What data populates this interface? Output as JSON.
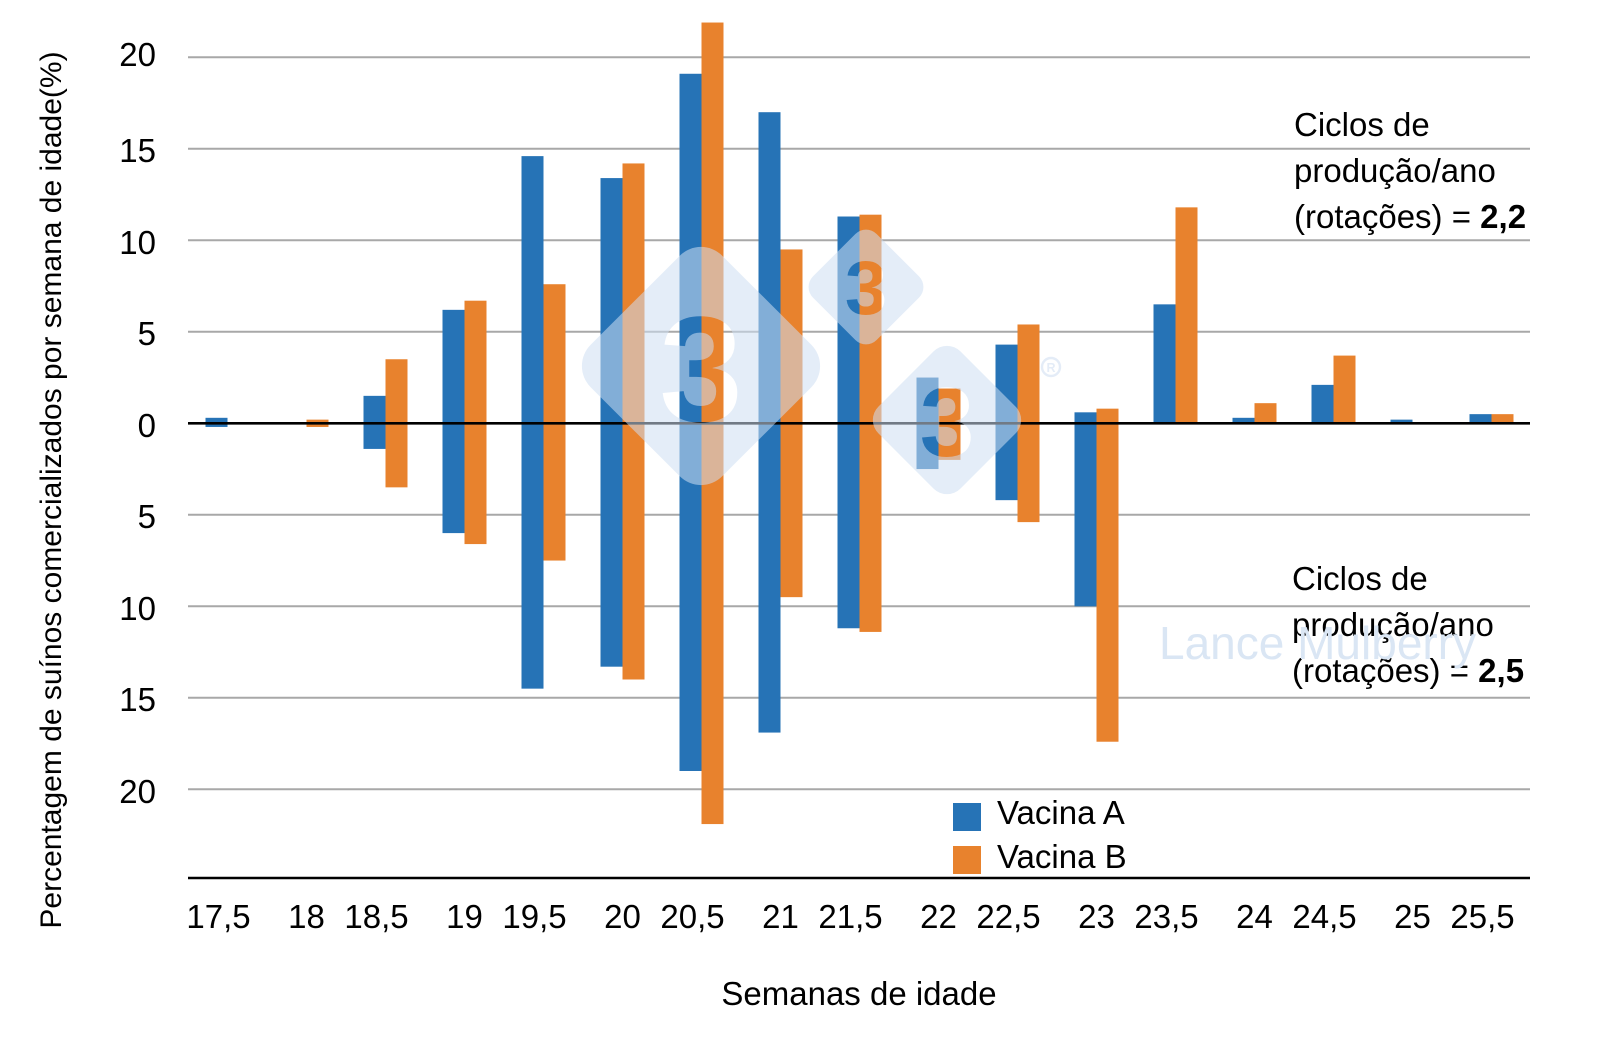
{
  "chart_data": {
    "type": "bar",
    "title": "",
    "xlabel": "Semanas de idade",
    "ylabel": "Percentagem de suínos comercializados por semana de idade(%)",
    "categories": [
      "17,5",
      "18",
      "18,5",
      "19",
      "19,5",
      "20",
      "20,5",
      "21",
      "21,5",
      "22",
      "22,5",
      "23",
      "23,5",
      "24",
      "24,5",
      "25",
      "25,5"
    ],
    "orientation": "mirrored-vertical",
    "upper_half_label": "Ciclos de produção/ano (rotações) = 2,2",
    "lower_half_label": "Ciclos de produção/ano (rotações) = 2,5",
    "series": [
      {
        "name": "Vacina A",
        "color": "#2673B6",
        "values_up_cycles_2_2": [
          0.3,
          0,
          1.5,
          6.2,
          14.6,
          13.4,
          19.1,
          17.0,
          11.3,
          2.5,
          4.3,
          0.6,
          6.5,
          0.3,
          2.1,
          0.2,
          0.5
        ],
        "values_down_cycles_2_5": [
          0.2,
          0,
          1.4,
          6.0,
          14.5,
          13.3,
          19.0,
          16.9,
          11.2,
          2.5,
          4.2,
          10.0,
          0,
          0,
          0,
          0,
          0
        ]
      },
      {
        "name": "Vacina B",
        "color": "#E8822D",
        "values_up_cycles_2_2": [
          0,
          0.2,
          3.5,
          6.7,
          7.6,
          14.2,
          21.9,
          9.5,
          11.4,
          1.9,
          5.4,
          0.8,
          11.8,
          1.1,
          3.7,
          0,
          0.5
        ],
        "values_down_cycles_2_5": [
          0,
          0.2,
          3.5,
          6.6,
          7.5,
          14.0,
          21.9,
          9.5,
          11.4,
          2.0,
          5.4,
          17.4,
          0,
          0,
          0,
          0,
          0
        ]
      }
    ],
    "y_axis": {
      "tick_values": [
        20,
        15,
        10,
        5,
        0,
        -5,
        -10,
        -15,
        -20
      ],
      "tick_labels": [
        "20",
        "15",
        "10",
        "5",
        "0",
        "5",
        "10",
        "15",
        "20"
      ],
      "gridline_values": [
        20,
        15,
        10,
        5,
        -5,
        -10,
        -15,
        -20
      ],
      "grid_on": true
    },
    "legend_position": "bottom-center",
    "legend_entries": [
      "Vacina A",
      "Vacina B"
    ]
  },
  "annotations": {
    "top": {
      "line1": "Ciclos de",
      "line2": "produção/ano",
      "line3_prefix": "(rotações) = ",
      "value": "2,2"
    },
    "bottom": {
      "line1": "Ciclos de",
      "line2": "produção/ano",
      "line3_prefix": "(rotações) = ",
      "value": "2,5"
    }
  },
  "watermark": {
    "logo_glyph": "3",
    "registered_mark": "R",
    "name_text": "Lance Mulberry",
    "color": "#CEDEF2"
  },
  "colors": {
    "background": "#FFFFFF",
    "gridline": "#A8A8A8",
    "axis_line": "#000000",
    "text": "#000000"
  }
}
